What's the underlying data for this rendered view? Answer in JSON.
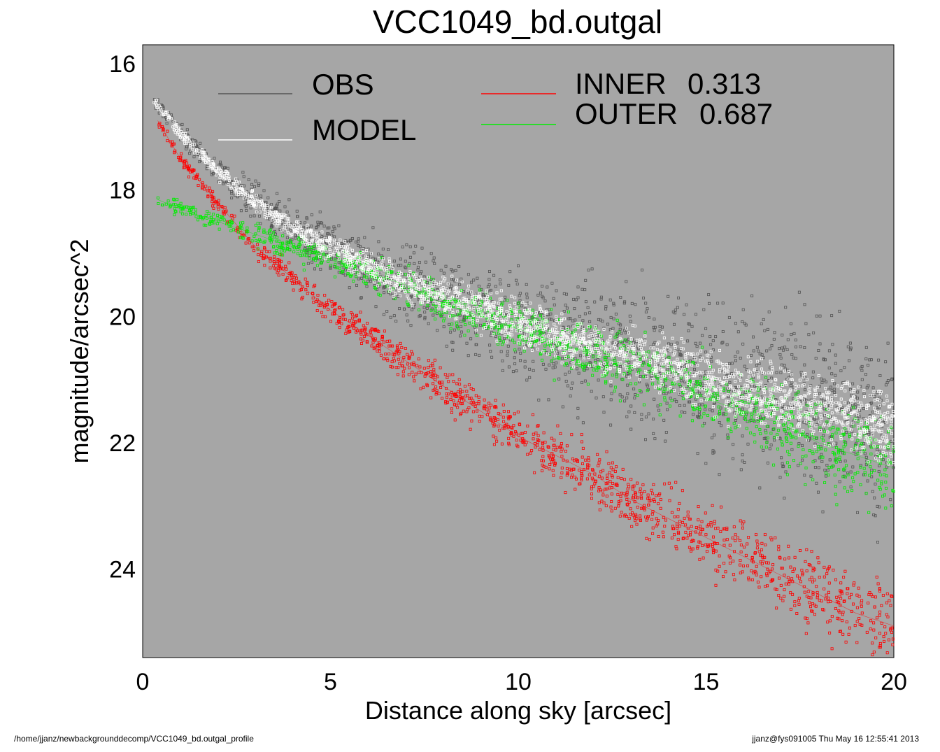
{
  "footer": {
    "path": "/home/jjanz/newbackgrounddecomp/VCC1049_bd.outgal_profile",
    "stamp": "jjanz@fys091005  Thu May 16 12:55:41 2013"
  },
  "colors": {
    "background": "#a6a6a6",
    "obs": "#555555",
    "model": "#ffffff",
    "inner": "#ff0000",
    "outer": "#00ee00"
  },
  "chart_data": {
    "type": "scatter",
    "title": "VCC1049_bd.outgal",
    "xlabel": "Distance along sky [arcsec]",
    "ylabel": "magnitude/arcsec^2",
    "xlim": [
      0,
      20
    ],
    "ylim": [
      25.4,
      15.7
    ],
    "y_inverted": true,
    "x_ticks": [
      "0",
      "5",
      "10",
      "15",
      "20"
    ],
    "x_tick_values": [
      0,
      5,
      10,
      15,
      20
    ],
    "y_ticks": [
      "16",
      "18",
      "20",
      "22",
      "24"
    ],
    "y_tick_values": [
      16,
      18,
      20,
      22,
      24
    ],
    "grid": false,
    "legend": {
      "placement": "top",
      "entries": [
        {
          "name": "OBS",
          "color": "#555555"
        },
        {
          "name": "MODEL",
          "color": "#ffffff"
        },
        {
          "name": "INNER",
          "value": "0.313",
          "color": "#ff0000"
        },
        {
          "name": "OUTER",
          "value": "0.687",
          "color": "#00ee00"
        }
      ]
    },
    "series": [
      {
        "name": "OBS",
        "color": "#555555",
        "x": [
          0.3,
          0.6,
          1,
          1.5,
          2,
          3,
          4,
          5,
          6,
          7,
          8,
          9,
          10,
          11,
          12,
          13,
          14,
          15,
          16,
          17,
          18,
          19,
          20
        ],
        "y": [
          16.6,
          16.8,
          17.1,
          17.4,
          17.7,
          18.2,
          18.6,
          18.9,
          19.2,
          19.5,
          19.7,
          19.9,
          20.1,
          20.3,
          20.5,
          20.6,
          20.8,
          21.0,
          21.2,
          21.3,
          21.5,
          21.6,
          21.8
        ]
      },
      {
        "name": "MODEL",
        "color": "#ffffff",
        "x": [
          0.3,
          0.6,
          1,
          1.5,
          2,
          3,
          4,
          5,
          6,
          7,
          8,
          9,
          10,
          11,
          12,
          13,
          14,
          15,
          16,
          17,
          18,
          19,
          20
        ],
        "y": [
          16.6,
          16.8,
          17.1,
          17.4,
          17.7,
          18.2,
          18.6,
          18.9,
          19.2,
          19.5,
          19.7,
          19.9,
          20.1,
          20.3,
          20.5,
          20.6,
          20.8,
          21.0,
          21.2,
          21.3,
          21.5,
          21.6,
          21.8
        ]
      },
      {
        "name": "INNER",
        "color": "#ff0000",
        "x": [
          0.4,
          1,
          2,
          3,
          4,
          5,
          6,
          7,
          8,
          9,
          10,
          11,
          12,
          13,
          14,
          15,
          16,
          17,
          18,
          19,
          20
        ],
        "y": [
          16.9,
          17.5,
          18.2,
          18.9,
          19.4,
          19.9,
          20.3,
          20.7,
          21.1,
          21.5,
          21.9,
          22.2,
          22.5,
          22.9,
          23.2,
          23.5,
          23.8,
          24.1,
          24.4,
          24.7,
          24.9
        ]
      },
      {
        "name": "OUTER",
        "color": "#00ee00",
        "x": [
          0.4,
          1,
          2,
          3,
          4,
          5,
          6,
          7,
          8,
          9,
          10,
          11,
          12,
          13,
          14,
          15,
          16,
          17,
          18,
          19,
          20
        ],
        "y": [
          18.15,
          18.3,
          18.5,
          18.7,
          18.9,
          19.1,
          19.3,
          19.5,
          19.8,
          20.0,
          20.2,
          20.4,
          20.6,
          20.8,
          21.0,
          21.3,
          21.5,
          21.7,
          22.0,
          22.2,
          22.4
        ]
      }
    ]
  }
}
